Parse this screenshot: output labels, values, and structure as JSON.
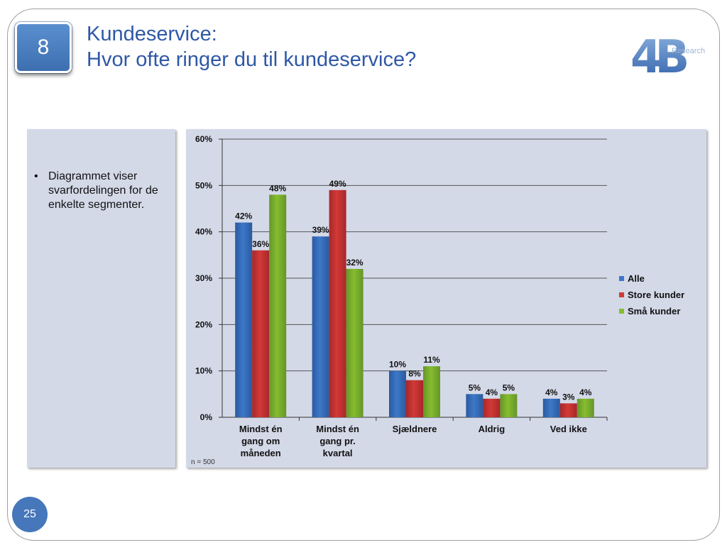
{
  "slide": {
    "badge_number": "8",
    "title_line1": "Kundeservice:",
    "title_line2": "Hvor ofte ringer du til kundeservice?",
    "logo_mark": "4B",
    "logo_text": "Research",
    "page_number": "25"
  },
  "left_panel": {
    "bullets": [
      "Diagrammet viser svarfordelingen for de enkelte segmenter."
    ]
  },
  "colors": {
    "alle": "#3d78c9",
    "store_kunder": "#d23a36",
    "sma_kunder": "#86bd2e",
    "title": "#2e58a6",
    "panel_bg": "#d4d9e8"
  },
  "chart_data": {
    "type": "bar",
    "categories": [
      "Mindst én gang om måneden",
      "Mindst én gang pr. kvartal",
      "Sjældnere",
      "Aldrig",
      "Ved ikke"
    ],
    "category_lines": [
      [
        "Mindst én",
        "gang om",
        "måneden"
      ],
      [
        "Mindst én",
        "gang pr.",
        "kvartal"
      ],
      [
        "Sjældnere"
      ],
      [
        "Aldrig"
      ],
      [
        "Ved ikke"
      ]
    ],
    "series": [
      {
        "name": "Alle",
        "values": [
          42,
          39,
          10,
          5,
          4
        ],
        "labels": [
          "42%",
          "39%",
          "10%",
          "5%",
          "4%"
        ]
      },
      {
        "name": "Store kunder",
        "values": [
          36,
          49,
          8,
          4,
          3
        ],
        "labels": [
          "36%",
          "49%",
          "8%",
          "4%",
          "3%"
        ]
      },
      {
        "name": "Små kunder",
        "values": [
          48,
          32,
          11,
          5,
          4
        ],
        "labels": [
          "48%",
          "32%",
          "11%",
          "5%",
          "4%"
        ]
      }
    ],
    "ylim": [
      0,
      60
    ],
    "yticks": [
      "0%",
      "10%",
      "20%",
      "30%",
      "40%",
      "50%",
      "60%"
    ],
    "grid": true,
    "legend_position": "right",
    "note": "n = 500"
  }
}
